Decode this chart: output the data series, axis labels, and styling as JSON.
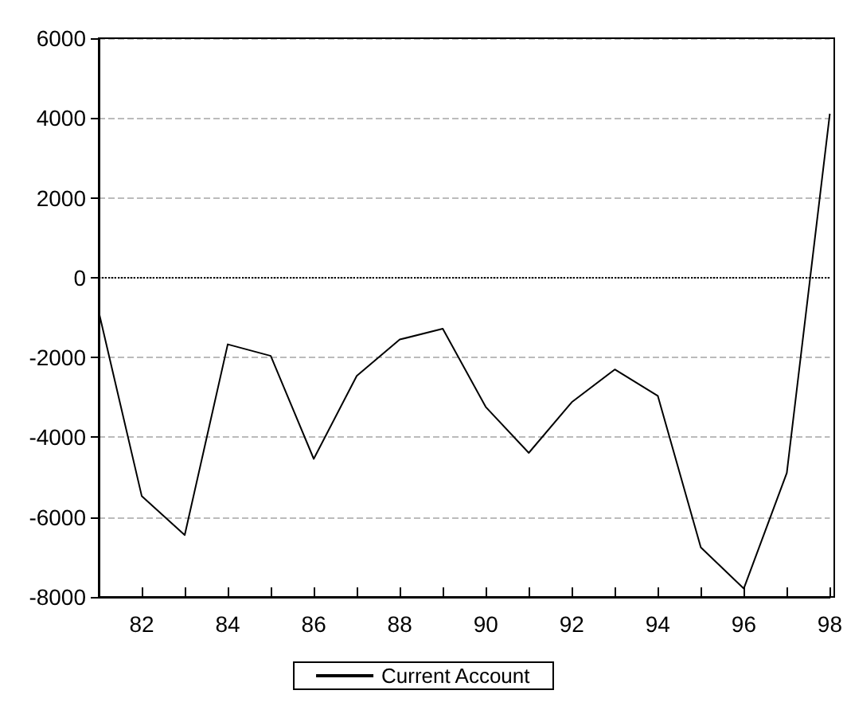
{
  "chart_data": {
    "type": "line",
    "x": [
      81,
      82,
      83,
      84,
      85,
      86,
      87,
      88,
      89,
      90,
      91,
      92,
      93,
      94,
      95,
      96,
      97,
      98
    ],
    "series": [
      {
        "name": "Current Account",
        "color": "#000000",
        "values": [
          -850,
          -5470,
          -6450,
          -1670,
          -1960,
          -4540,
          -2460,
          -1550,
          -1280,
          -3240,
          -4390,
          -3120,
          -2300,
          -2960,
          -6760,
          -7790,
          -4890,
          4110
        ]
      }
    ],
    "xlim": [
      81,
      98
    ],
    "xticks": [
      {
        "value": 81,
        "label": null
      },
      82,
      {
        "value": 83,
        "label": null
      },
      84,
      {
        "value": 85,
        "label": null
      },
      86,
      {
        "value": 87,
        "label": null
      },
      88,
      {
        "value": 89,
        "label": null
      },
      90,
      {
        "value": 91,
        "label": null
      },
      92,
      {
        "value": 93,
        "label": null
      },
      94,
      {
        "value": 95,
        "label": null
      },
      96,
      {
        "value": 97,
        "label": null
      },
      98
    ],
    "ylim": [
      -8000,
      6000
    ],
    "yticks": [
      -8000,
      -6000,
      -4000,
      -2000,
      0,
      2000,
      4000,
      6000
    ],
    "ref_lines": [
      {
        "axis": "y",
        "value": 0,
        "color": "#000000",
        "line_style": "dotted"
      }
    ],
    "grid": "y",
    "legend": "bottom",
    "marker": "none",
    "line_style": "solid"
  }
}
